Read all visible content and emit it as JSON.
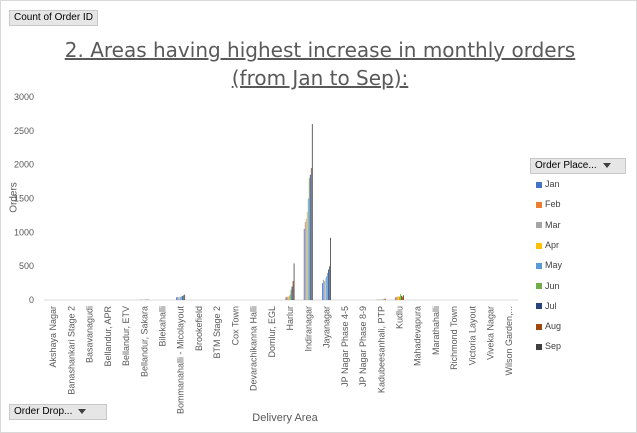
{
  "filter_button": {
    "label": "Count of Order ID"
  },
  "order_drop_button": {
    "label": "Order Drop..."
  },
  "legend_button": {
    "label": "Order Place..."
  },
  "colors": {
    "Jan": "#4472c4",
    "Feb": "#ed7d31",
    "Mar": "#a5a5a5",
    "Apr": "#ffc000",
    "May": "#5b9bd5",
    "Jun": "#70ad47",
    "Jul": "#264478",
    "Aug": "#9e480e",
    "Sep": "#404040"
  },
  "chart_data": {
    "type": "bar",
    "title": "2. Areas having highest increase in monthly orders (from Jan to Sep):",
    "xlabel": "Delivery Area",
    "ylabel": "Orders",
    "ylim": [
      0,
      3000
    ],
    "yticks": [
      0,
      500,
      1000,
      1500,
      2000,
      2500,
      3000
    ],
    "grid": false,
    "legend_position": "right",
    "categories": [
      "Akshaya Nagar",
      "Banashankari Stage 2",
      "Basavanagudi",
      "Bellandur, APR",
      "Bellandur, ETV",
      "Bellandur, Sakara",
      "Bilekahalli",
      "Bommanahalli - Micolayout",
      "Brookefield",
      "BTM Stage 2",
      "Cox Town",
      "Devarachikanna Halli",
      "Domlur, EGL",
      "Harlur",
      "Indiranagar",
      "Jayanagar",
      "JP Nagar Phase 4-5",
      "JP Nagar Phase 8-9",
      "Kadubeesanhali, PTP",
      "Kudlu",
      "Mahadevapura",
      "Marathahalli",
      "Richmond Town",
      "Victoria Layout",
      "Viveka Nagar",
      "Wilson Garden,..."
    ],
    "series": [
      {
        "name": "Jan",
        "values": [
          0,
          0,
          0,
          0,
          0,
          5,
          0,
          40,
          0,
          0,
          0,
          0,
          0,
          40,
          1050,
          250,
          0,
          0,
          5,
          40,
          0,
          0,
          0,
          0,
          0,
          0
        ]
      },
      {
        "name": "Feb",
        "values": [
          0,
          0,
          0,
          0,
          0,
          5,
          0,
          45,
          0,
          0,
          0,
          0,
          0,
          50,
          1150,
          300,
          0,
          0,
          5,
          45,
          0,
          0,
          0,
          0,
          0,
          0
        ]
      },
      {
        "name": "Mar",
        "values": [
          0,
          0,
          0,
          0,
          0,
          5,
          0,
          40,
          0,
          0,
          0,
          0,
          0,
          45,
          1200,
          280,
          0,
          0,
          10,
          50,
          0,
          0,
          0,
          0,
          0,
          0
        ]
      },
      {
        "name": "Apr",
        "values": [
          0,
          0,
          0,
          0,
          0,
          5,
          0,
          50,
          0,
          0,
          0,
          0,
          0,
          60,
          1300,
          320,
          0,
          0,
          5,
          55,
          0,
          0,
          0,
          0,
          0,
          0
        ]
      },
      {
        "name": "May",
        "values": [
          0,
          0,
          0,
          0,
          0,
          5,
          0,
          45,
          0,
          0,
          0,
          0,
          0,
          80,
          1500,
          350,
          0,
          0,
          5,
          50,
          0,
          0,
          0,
          0,
          0,
          0
        ]
      },
      {
        "name": "Jun",
        "values": [
          0,
          0,
          0,
          0,
          0,
          5,
          0,
          55,
          0,
          0,
          0,
          0,
          0,
          150,
          1800,
          400,
          0,
          0,
          10,
          90,
          0,
          0,
          0,
          0,
          0,
          0
        ]
      },
      {
        "name": "Jul",
        "values": [
          0,
          0,
          0,
          0,
          0,
          5,
          0,
          60,
          0,
          0,
          0,
          0,
          0,
          200,
          1850,
          450,
          0,
          0,
          5,
          60,
          0,
          0,
          0,
          0,
          0,
          0
        ]
      },
      {
        "name": "Aug",
        "values": [
          0,
          0,
          0,
          0,
          0,
          5,
          0,
          70,
          0,
          0,
          0,
          0,
          0,
          280,
          1950,
          500,
          0,
          0,
          10,
          50,
          0,
          0,
          0,
          0,
          0,
          0
        ]
      },
      {
        "name": "Sep",
        "values": [
          0,
          0,
          0,
          0,
          0,
          5,
          0,
          80,
          0,
          0,
          0,
          0,
          0,
          540,
          2600,
          920,
          0,
          0,
          20,
          70,
          0,
          0,
          0,
          0,
          0,
          0
        ]
      }
    ]
  }
}
